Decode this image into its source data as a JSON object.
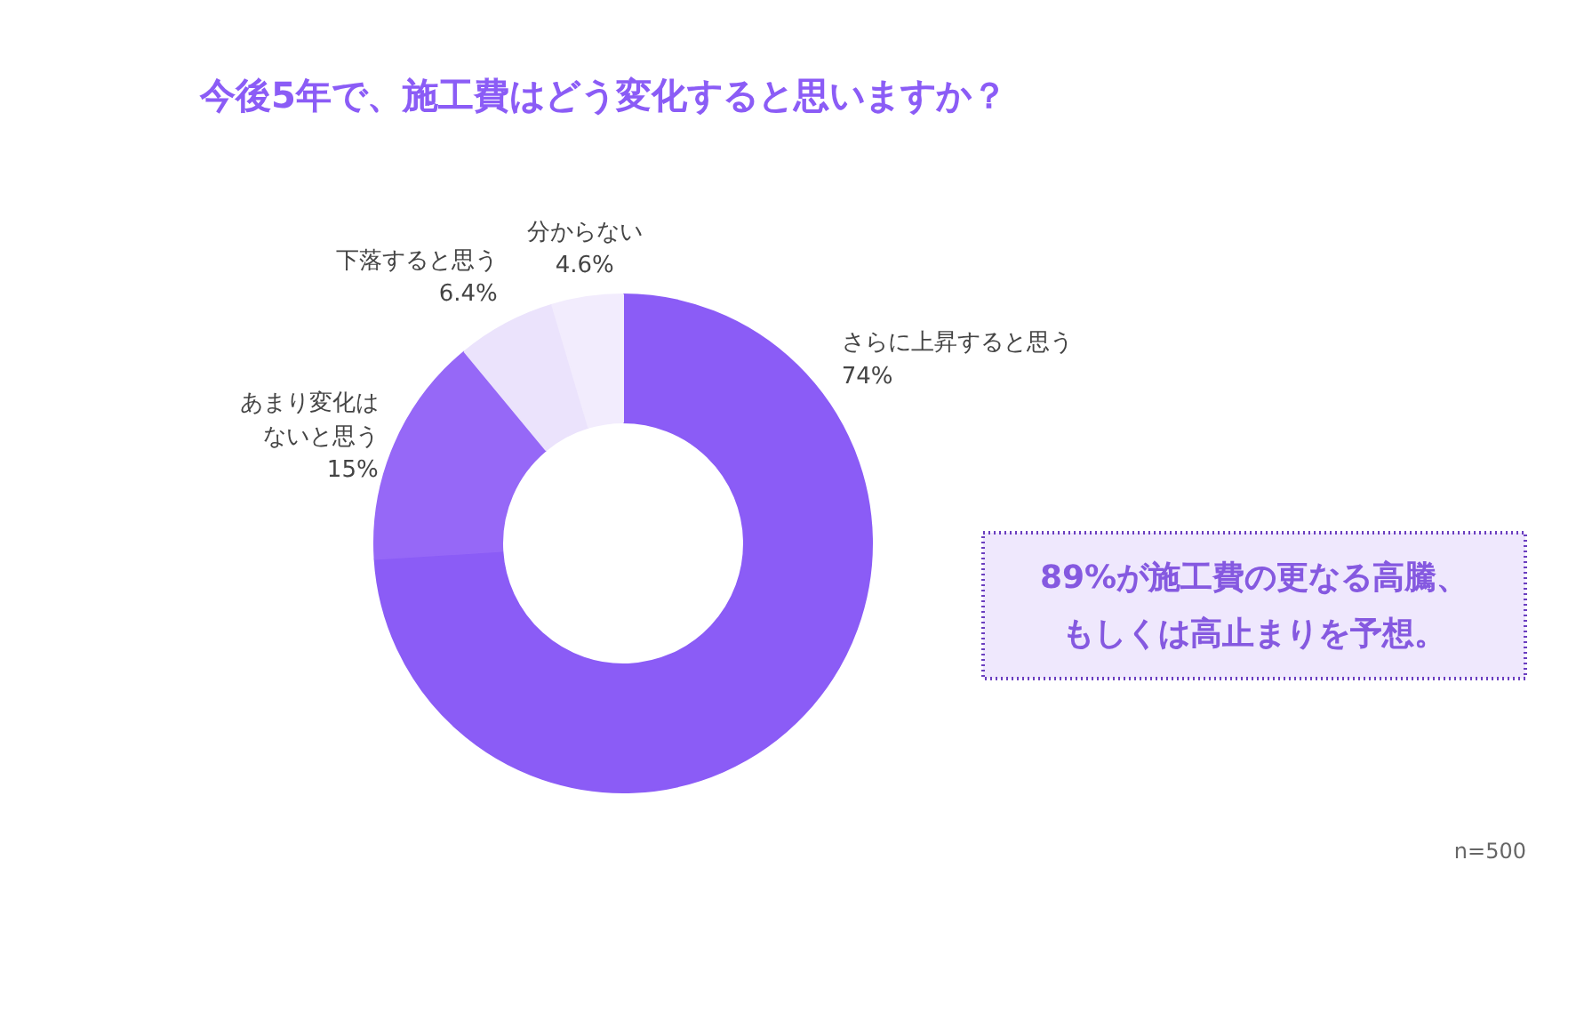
{
  "chart_data": {
    "type": "donut",
    "title": "今後5年で、施工費はどう変化すると思いますか？",
    "categories": [
      "さらに上昇すると思う",
      "あまり変化はないと思う",
      "下落すると思う",
      "分からない"
    ],
    "values": [
      74,
      15,
      6.4,
      4.6
    ],
    "colors": [
      "#8b5cf6",
      "#9668f7",
      "#ebe3fc",
      "#f2ecfd"
    ],
    "value_labels": [
      "74%",
      "15%",
      "6.4%",
      "4.6%"
    ],
    "annotations": [
      "89%が施工費の更なる高騰、もしくは高止まりを予想。",
      "n=500"
    ]
  }
}
